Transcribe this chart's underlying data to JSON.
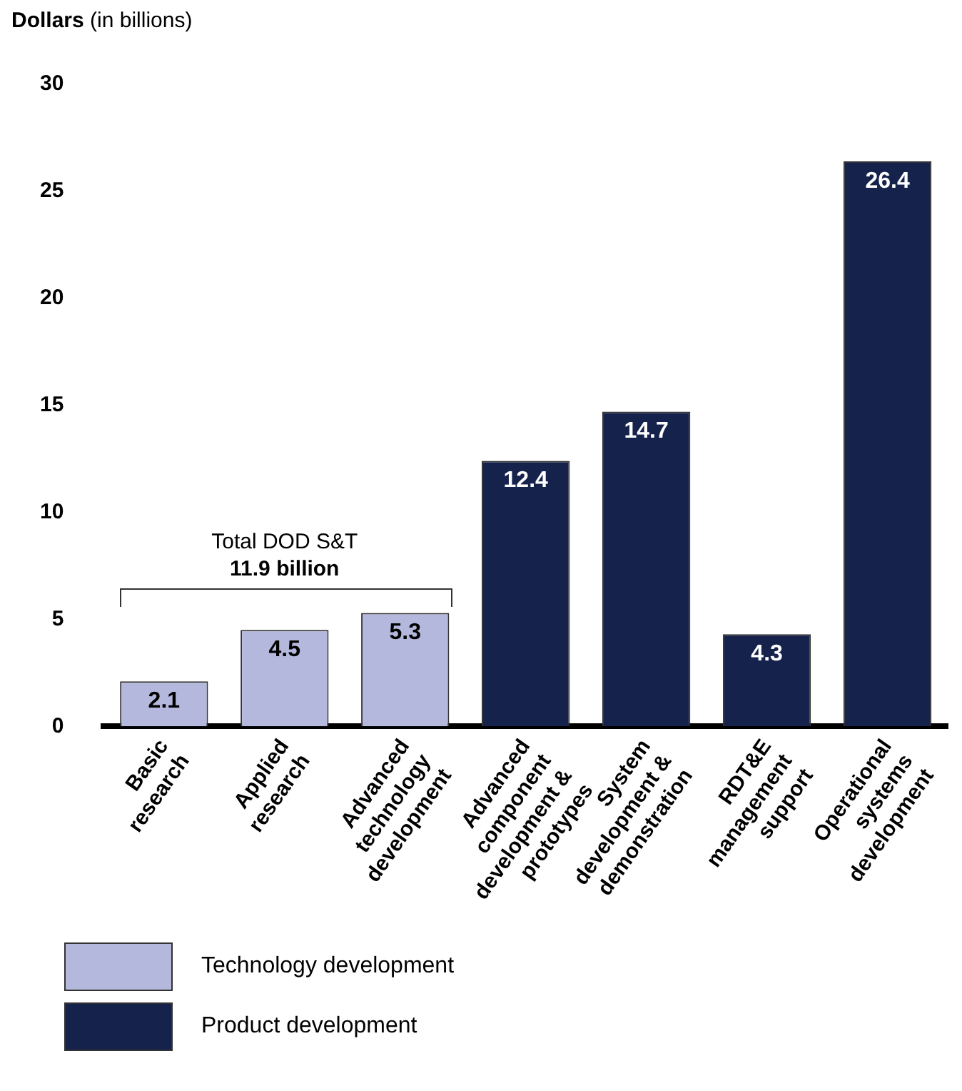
{
  "chart_data": {
    "type": "bar",
    "ylabel": "Dollars (in billions)",
    "categories": [
      "Basic research",
      "Applied research",
      "Advanced technology development",
      "Advanced component development & prototypes",
      "System development & demonstration",
      "RDT&E management support",
      "Operational systems development"
    ],
    "series": [
      {
        "name": "Technology development",
        "color": "#b4b8dc",
        "values": [
          2.1,
          4.5,
          5.3,
          null,
          null,
          null,
          null
        ]
      },
      {
        "name": "Product development",
        "color": "#15224c",
        "values": [
          null,
          null,
          null,
          12.4,
          14.7,
          4.3,
          26.4
        ]
      }
    ],
    "stacked": true,
    "ylim": [
      0,
      30
    ],
    "yticks": [
      0,
      5,
      10,
      15,
      20,
      25,
      30
    ],
    "grid": false,
    "legend": "bottom",
    "data_labels": true,
    "annotations": [
      "Total DOD S&T",
      "11.9 billion"
    ]
  }
}
